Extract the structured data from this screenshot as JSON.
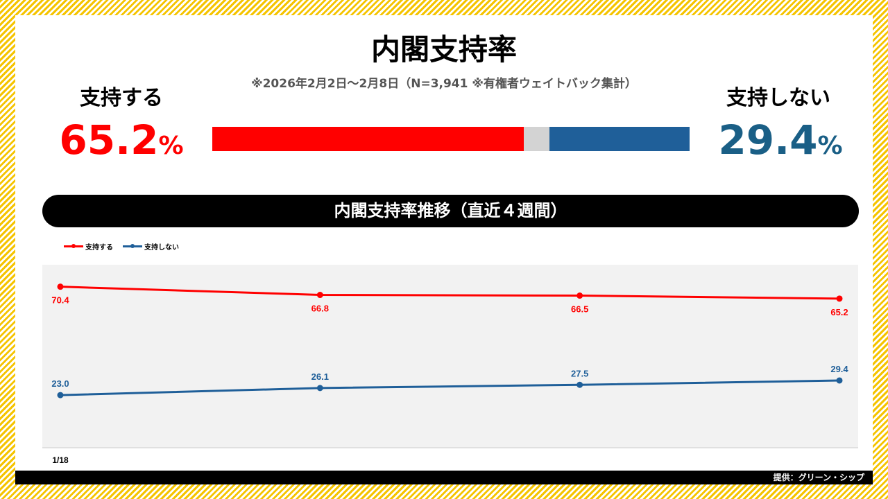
{
  "title": "内閣支持率",
  "subtitle": "※2026年2月2日〜2月8日（N=3,941 ※有権者ウェイトバック集計）",
  "support": {
    "label": "支持する",
    "value": "65.2",
    "unit": "%",
    "color": "#ff0000"
  },
  "oppose": {
    "label": "支持しない",
    "value": "29.4",
    "unit": "%",
    "color": "#1f5f99"
  },
  "summary_bar": {
    "support": 65.2,
    "other": 5.4,
    "oppose": 29.4,
    "other_color": "#d3d3d3"
  },
  "banner": "内閣支持率推移（直近４週間）",
  "footer": "提供：グリーン・シップ",
  "chart_data": {
    "type": "line",
    "x": [
      "1/18",
      "",
      "",
      ""
    ],
    "x_tick_labels": [
      "1/18"
    ],
    "ylim": [
      0,
      80
    ],
    "grid": false,
    "legend": "top-left",
    "background": "#f2f2f2",
    "series": [
      {
        "name": "支持する",
        "color": "#ff0000",
        "values": [
          70.4,
          66.8,
          66.5,
          65.2
        ],
        "labels": [
          "70.4",
          "66.8",
          "66.5",
          "65.2"
        ],
        "label_pos": "below"
      },
      {
        "name": "支持しない",
        "color": "#1f5f99",
        "values": [
          23.0,
          26.1,
          27.5,
          29.4
        ],
        "labels": [
          "23.0",
          "26.1",
          "27.5",
          "29.4"
        ],
        "label_pos": "above"
      }
    ]
  }
}
